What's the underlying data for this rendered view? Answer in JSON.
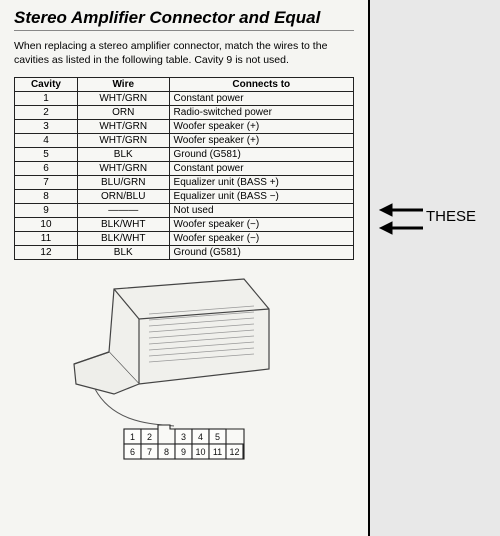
{
  "title": "Stereo Amplifier Connector and Equal",
  "intro": "When replacing a stereo amplifier connector, match the wires to the cavities as listed in the following table. Cavity 9 is not used.",
  "table": {
    "columns": [
      "Cavity",
      "Wire",
      "Connects to"
    ],
    "rows": [
      {
        "cavity": "1",
        "wire": "WHT/GRN",
        "connects": "Constant power"
      },
      {
        "cavity": "2",
        "wire": "ORN",
        "connects": "Radio-switched power"
      },
      {
        "cavity": "3",
        "wire": "WHT/GRN",
        "connects": "Woofer speaker (+)"
      },
      {
        "cavity": "4",
        "wire": "WHT/GRN",
        "connects": "Woofer speaker (+)"
      },
      {
        "cavity": "5",
        "wire": "BLK",
        "connects": "Ground (G581)"
      },
      {
        "cavity": "6",
        "wire": "WHT/GRN",
        "connects": "Constant power"
      },
      {
        "cavity": "7",
        "wire": "BLU/GRN",
        "connects": "Equalizer unit (BASS +)"
      },
      {
        "cavity": "8",
        "wire": "ORN/BLU",
        "connects": "Equalizer unit (BASS −)"
      },
      {
        "cavity": "9",
        "wire": "———",
        "connects": "Not used"
      },
      {
        "cavity": "10",
        "wire": "BLK/WHT",
        "connects": "Woofer speaker (−)"
      },
      {
        "cavity": "11",
        "wire": "BLK/WHT",
        "connects": "Woofer speaker (−)"
      },
      {
        "cavity": "12",
        "wire": "BLK",
        "connects": "Ground (G581)"
      }
    ],
    "header_bg": "#f7f7f4",
    "border_color": "#222222",
    "font_size": 10
  },
  "annotation": {
    "label": "THESE",
    "arrow_color": "#000000",
    "targets_rows": [
      7,
      8
    ]
  },
  "connector_diagram": {
    "pin_labels": [
      [
        "1",
        "2"
      ],
      [
        "3",
        "4",
        "5"
      ],
      [
        "6",
        "7",
        "8",
        "9",
        "10"
      ],
      [
        "11",
        "12"
      ]
    ],
    "stroke": "#333333",
    "fill": "#f5f5f2",
    "font_size": 9
  },
  "colors": {
    "page_bg": "#f5f5f2",
    "outer_bg": "#e8e8e8",
    "text": "#111111"
  }
}
